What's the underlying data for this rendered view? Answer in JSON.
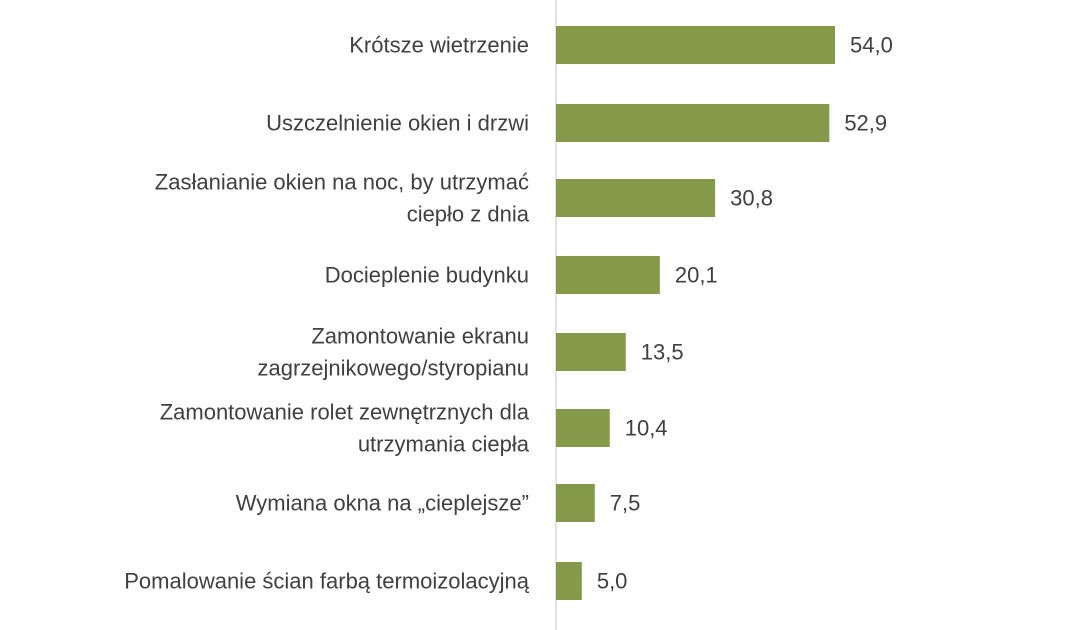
{
  "chart_data": {
    "type": "bar",
    "orientation": "horizontal",
    "categories": [
      [
        "Krótsze wietrzenie"
      ],
      [
        "Uszczelnienie okien i drzwi"
      ],
      [
        "Zasłanianie okien na noc, by utrzymać",
        "ciepło z dnia"
      ],
      [
        "Docieplenie budynku"
      ],
      [
        "Zamontowanie ekranu",
        "zagrzejnikowego/styropianu"
      ],
      [
        "Zamontowanie rolet zewnętrznych dla",
        "utrzymania ciepła"
      ],
      [
        "Wymiana okna na „cieplejsze”"
      ],
      [
        "Pomalowanie ścian farbą termoizolacyjną"
      ]
    ],
    "values": [
      54.0,
      52.9,
      30.8,
      20.1,
      13.5,
      10.4,
      7.5,
      5.0
    ],
    "value_labels": [
      "54,0",
      "52,9",
      "30,8",
      "20,1",
      "13,5",
      "10,4",
      "7,5",
      "5,0"
    ],
    "bar_color": "#84994a",
    "axis_color": "#d9d9d9",
    "label_color": "#404040",
    "xlim": [
      0,
      60
    ],
    "grid": false,
    "legend": "none"
  }
}
